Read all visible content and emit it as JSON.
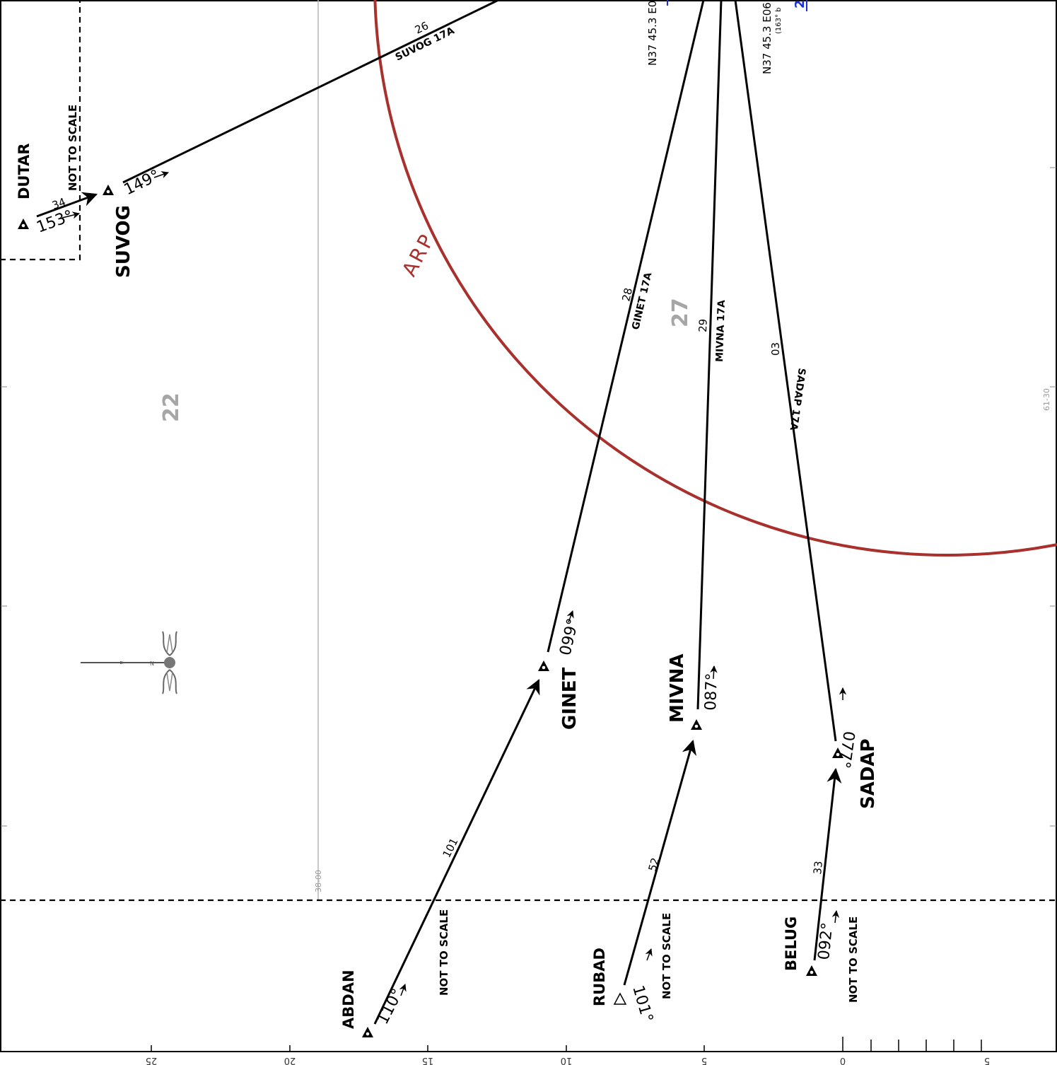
{
  "fixes": {
    "dutar": "DUTAR",
    "suvog": "SUVOG",
    "ginet": "GINET",
    "mivna": "MIVNA",
    "sadap": "SADAP",
    "abdan": "ABDAN",
    "rubad": "RUBAD",
    "belug": "BELUG"
  },
  "routes": {
    "suvog": "SUVOG 17A",
    "ginet": "GINET 17A",
    "mivna": "MIVNA 17A",
    "sadap": "SADAP 17A"
  },
  "distances": {
    "dutar_suvog": "34",
    "suvog_route": "26",
    "ginet_route": "28",
    "mivna_route": "29",
    "sadap_route": "03",
    "abdan_ginet": "101",
    "rubad_mivna": "52",
    "belug_sadap": "33"
  },
  "courses": {
    "dutar": "153°",
    "suvog": "149°",
    "ginet": "099°",
    "mivna": "087°",
    "sadap": "077°",
    "abdan": "110°",
    "rubad": "101°",
    "belug": "092°"
  },
  "not_to_scale": "NOT TO SCALE",
  "arp": "ARP",
  "msa": {
    "sector_left": "22",
    "sector_right": "27"
  },
  "coords": {
    "left": "N37 45.3 E0",
    "right": "N37 45.3 E06",
    "right_sub": "(163° b",
    "blue_mark": "2"
  },
  "grid_labels": {
    "lat": "38-00",
    "lon": "61-30"
  },
  "scale": {
    "ticks": [
      "25",
      "20",
      "15",
      "10",
      "5",
      "0",
      "5"
    ]
  },
  "colors": {
    "arp_circle": "#a8312e",
    "msa_text": "#a6a6a6",
    "route": "#000000"
  },
  "icons": {
    "compass": "compass-rose-icon",
    "fix": "triangle-fix-icon"
  }
}
